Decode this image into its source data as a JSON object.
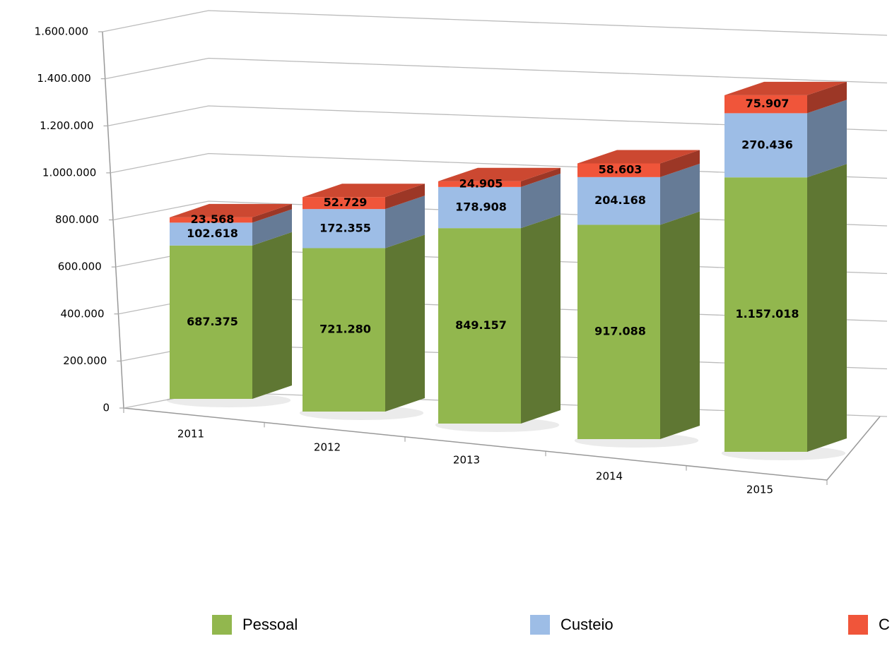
{
  "chart_data": {
    "type": "bar3d_stacked",
    "categories": [
      "2011",
      "2012",
      "2013",
      "2014",
      "2015"
    ],
    "series": [
      {
        "name": "Pessoal",
        "color": "#92b74e",
        "values": [
          687375,
          721280,
          849157,
          917088,
          1157018
        ],
        "value_labels": [
          "687.375",
          "721.280",
          "849.157",
          "917.088",
          "1.157.018"
        ]
      },
      {
        "name": "Custeio",
        "color": "#9dbde6",
        "values": [
          102618,
          172355,
          178908,
          204168,
          270436
        ],
        "value_labels": [
          "102.618",
          "172.355",
          "178.908",
          "204.168",
          "270.436"
        ]
      },
      {
        "name": "C",
        "color": "#f0553a",
        "values": [
          23568,
          52729,
          24905,
          58603,
          75907
        ],
        "value_labels": [
          "23.568",
          "52.729",
          "24.905",
          "58.603",
          "75.907"
        ]
      }
    ],
    "ylim": [
      0,
      1600000
    ],
    "yticks": [
      0,
      {
        "value": 200000,
        "label": "200.000"
      },
      {
        "value": 400000,
        "label": "400.000"
      },
      {
        "value": 600000,
        "label": "600.000"
      },
      {
        "value": 800000,
        "label": "800.000"
      },
      {
        "value": 1000000,
        "label": "1.000.000"
      },
      {
        "value": 1200000,
        "label": "1.200.000"
      },
      {
        "value": 1400000,
        "label": "1.400.000"
      },
      {
        "value": 1600000,
        "label": "1.600.000"
      }
    ],
    "grid": true,
    "legend": "bottom"
  }
}
